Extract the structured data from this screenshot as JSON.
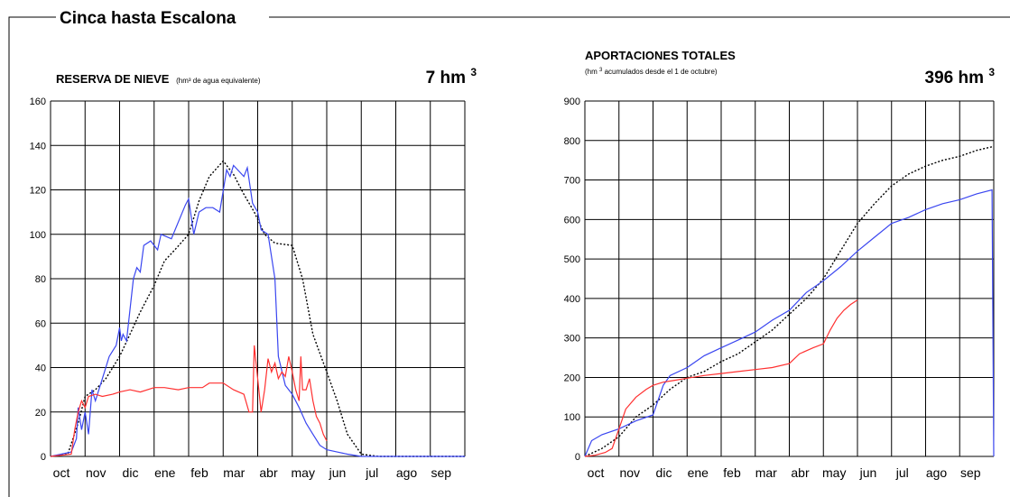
{
  "page_title": "Cinca hasta Escalona",
  "colors": {
    "current": "#ff3030",
    "previous": "#3a46f0",
    "mean": "#000000",
    "grid": "#000000"
  },
  "chart_data": [
    {
      "type": "line",
      "title": "RESERVA DE NIEVE",
      "subtitle": "(hm³ de agua equivalente)",
      "value_label": "7 hm",
      "value_exp": "3",
      "x_tick_labels": [
        "oct",
        "nov",
        "dic",
        "ene",
        "feb",
        "mar",
        "abr",
        "may",
        "jun",
        "jul",
        "ago",
        "sep"
      ],
      "ylim": [
        0,
        160
      ],
      "y_ticks": [
        0,
        20,
        40,
        60,
        80,
        100,
        120,
        140,
        160
      ],
      "grid": true,
      "series": [
        {
          "style": "dotted",
          "color": "#000000",
          "x": [
            0,
            0.5,
            0.8,
            1.0,
            1.3,
            1.6,
            2.0,
            2.3,
            2.6,
            3.0,
            3.3,
            3.6,
            4.0,
            4.3,
            4.6,
            5.0,
            5.3,
            5.6,
            5.9,
            6.2,
            6.5,
            7.0,
            7.3,
            7.6,
            8.0,
            8.3,
            8.6,
            9.0,
            9.5,
            10,
            11,
            12
          ],
          "y": [
            0,
            1,
            15,
            27,
            30,
            35,
            45,
            55,
            65,
            77,
            88,
            93,
            100,
            115,
            126,
            133,
            127,
            118,
            110,
            100,
            96,
            95,
            80,
            55,
            38,
            25,
            10,
            1,
            0,
            0,
            0,
            0
          ]
        },
        {
          "style": "solid",
          "color": "#3a46f0",
          "x": [
            0,
            0.6,
            0.75,
            0.8,
            0.9,
            1.0,
            1.1,
            1.2,
            1.3,
            1.5,
            1.7,
            1.9,
            2.0,
            2.05,
            2.1,
            2.2,
            2.4,
            2.5,
            2.6,
            2.7,
            2.9,
            3.1,
            3.2,
            3.5,
            3.9,
            4.0,
            4.15,
            4.3,
            4.5,
            4.7,
            4.9,
            5.1,
            5.2,
            5.3,
            5.6,
            5.7,
            5.85,
            6.0,
            6.1,
            6.3,
            6.5,
            6.6,
            6.8,
            7.0,
            7.2,
            7.4,
            7.6,
            7.8,
            8.0,
            8.3,
            8.6,
            9,
            12
          ],
          "y": [
            0,
            2,
            8,
            22,
            12,
            20,
            10,
            30,
            25,
            35,
            45,
            50,
            58,
            52,
            55,
            52,
            80,
            85,
            83,
            95,
            97,
            93,
            100,
            98,
            113,
            116,
            100,
            110,
            112,
            112,
            110,
            129,
            126,
            131,
            126,
            130,
            114,
            110,
            102,
            100,
            80,
            45,
            32,
            28,
            22,
            15,
            10,
            5,
            3,
            2,
            1,
            0,
            0
          ]
        },
        {
          "style": "solid",
          "color": "#ff3030",
          "x": [
            0,
            0.6,
            0.7,
            0.8,
            0.9,
            1.0,
            1.1,
            1.3,
            1.5,
            1.8,
            2.0,
            2.3,
            2.6,
            3.0,
            3.3,
            3.7,
            4.0,
            4.4,
            4.6,
            4.8,
            5.0,
            5.3,
            5.6,
            5.75,
            5.85,
            5.9,
            6.0,
            6.1,
            6.2,
            6.3,
            6.4,
            6.5,
            6.6,
            6.7,
            6.8,
            6.9,
            7.0,
            7.1,
            7.2,
            7.25,
            7.3,
            7.4,
            7.5,
            7.6,
            7.7,
            7.8,
            7.9,
            8.0
          ],
          "y": [
            0,
            1,
            12,
            20,
            25,
            22,
            27,
            28,
            27,
            28,
            29,
            30,
            29,
            31,
            31,
            30,
            31,
            31,
            33,
            33,
            33,
            30,
            28,
            20,
            20,
            50,
            35,
            20,
            30,
            44,
            38,
            42,
            35,
            38,
            36,
            45,
            38,
            30,
            25,
            45,
            30,
            30,
            35,
            25,
            18,
            15,
            10,
            7
          ]
        }
      ]
    },
    {
      "type": "line",
      "title": "APORTACIONES TOTALES",
      "subtitle_parts": [
        "(hm",
        "3",
        " acumulados desde el 1 de octubre)"
      ],
      "value_label": "396 hm",
      "value_exp": "3",
      "x_tick_labels": [
        "oct",
        "nov",
        "dic",
        "ene",
        "feb",
        "mar",
        "abr",
        "may",
        "jun",
        "jul",
        "ago",
        "sep"
      ],
      "ylim": [
        0,
        900
      ],
      "y_ticks": [
        0,
        100,
        200,
        300,
        400,
        500,
        600,
        700,
        800,
        900
      ],
      "grid": true,
      "series": [
        {
          "style": "dotted",
          "color": "#000000",
          "x": [
            0,
            0.5,
            1.0,
            1.5,
            2.0,
            2.5,
            3.0,
            3.5,
            4.0,
            4.5,
            5.0,
            5.5,
            6.0,
            6.5,
            7.0,
            7.5,
            8.0,
            8.5,
            9.0,
            9.5,
            10.0,
            10.5,
            11.0,
            11.5,
            12
          ],
          "y": [
            0,
            20,
            50,
            100,
            130,
            170,
            200,
            215,
            240,
            260,
            290,
            320,
            360,
            400,
            450,
            520,
            590,
            640,
            685,
            715,
            735,
            750,
            760,
            775,
            785
          ]
        },
        {
          "style": "solid",
          "color": "#3a46f0",
          "x": [
            0,
            0.2,
            0.5,
            1.0,
            1.5,
            2.0,
            2.3,
            2.5,
            3.0,
            3.5,
            4.0,
            4.5,
            5.0,
            5.5,
            6.0,
            6.5,
            7.0,
            7.5,
            8.0,
            8.5,
            9.0,
            9.5,
            10.0,
            10.5,
            11.0,
            11.5,
            11.95,
            12
          ],
          "y": [
            0,
            40,
            55,
            70,
            90,
            105,
            180,
            205,
            225,
            255,
            275,
            295,
            315,
            345,
            370,
            415,
            445,
            480,
            520,
            555,
            590,
            605,
            625,
            640,
            650,
            665,
            675,
            0
          ]
        },
        {
          "style": "solid",
          "color": "#ff3030",
          "x": [
            0,
            0.3,
            0.6,
            0.8,
            1.0,
            1.2,
            1.5,
            1.8,
            2.0,
            2.3,
            2.6,
            3.0,
            3.5,
            4.0,
            4.5,
            5.0,
            5.5,
            6.0,
            6.3,
            6.7,
            7.0,
            7.2,
            7.4,
            7.6,
            7.8,
            8.0
          ],
          "y": [
            0,
            3,
            10,
            20,
            70,
            120,
            150,
            170,
            180,
            188,
            192,
            198,
            205,
            210,
            215,
            220,
            225,
            235,
            260,
            275,
            285,
            320,
            350,
            370,
            385,
            396
          ]
        }
      ]
    }
  ]
}
